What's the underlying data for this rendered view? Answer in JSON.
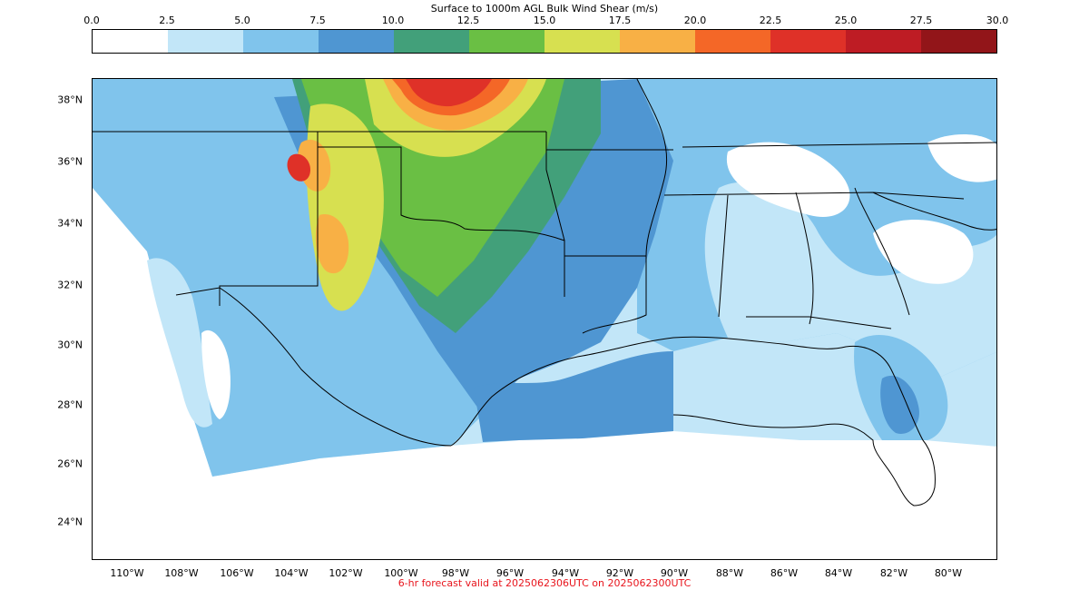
{
  "title": "Surface to 1000m AGL Bulk Wind Shear (m/s)",
  "footer": "6-hr forecast valid at 2025062306UTC on 2025062300UTC",
  "colorbar": {
    "ticks": [
      "0.0",
      "2.5",
      "5.0",
      "7.5",
      "10.0",
      "12.5",
      "15.0",
      "17.5",
      "20.0",
      "22.5",
      "25.0",
      "27.5",
      "30.0"
    ],
    "colors": [
      "#ffffff",
      "#c2e6f8",
      "#80c4ec",
      "#4f96d2",
      "#42a07a",
      "#6abf44",
      "#d7e050",
      "#f8b045",
      "#f46727",
      "#df3128",
      "#be1c24",
      "#921519"
    ]
  },
  "latitude_labels": [
    "38°N",
    "36°N",
    "34°N",
    "32°N",
    "30°N",
    "28°N",
    "26°N",
    "24°N"
  ],
  "longitude_labels": [
    "110°W",
    "108°W",
    "106°W",
    "104°W",
    "102°W",
    "100°W",
    "98°W",
    "96°W",
    "94°W",
    "92°W",
    "90°W",
    "88°W",
    "86°W",
    "84°W",
    "82°W",
    "80°W"
  ]
}
